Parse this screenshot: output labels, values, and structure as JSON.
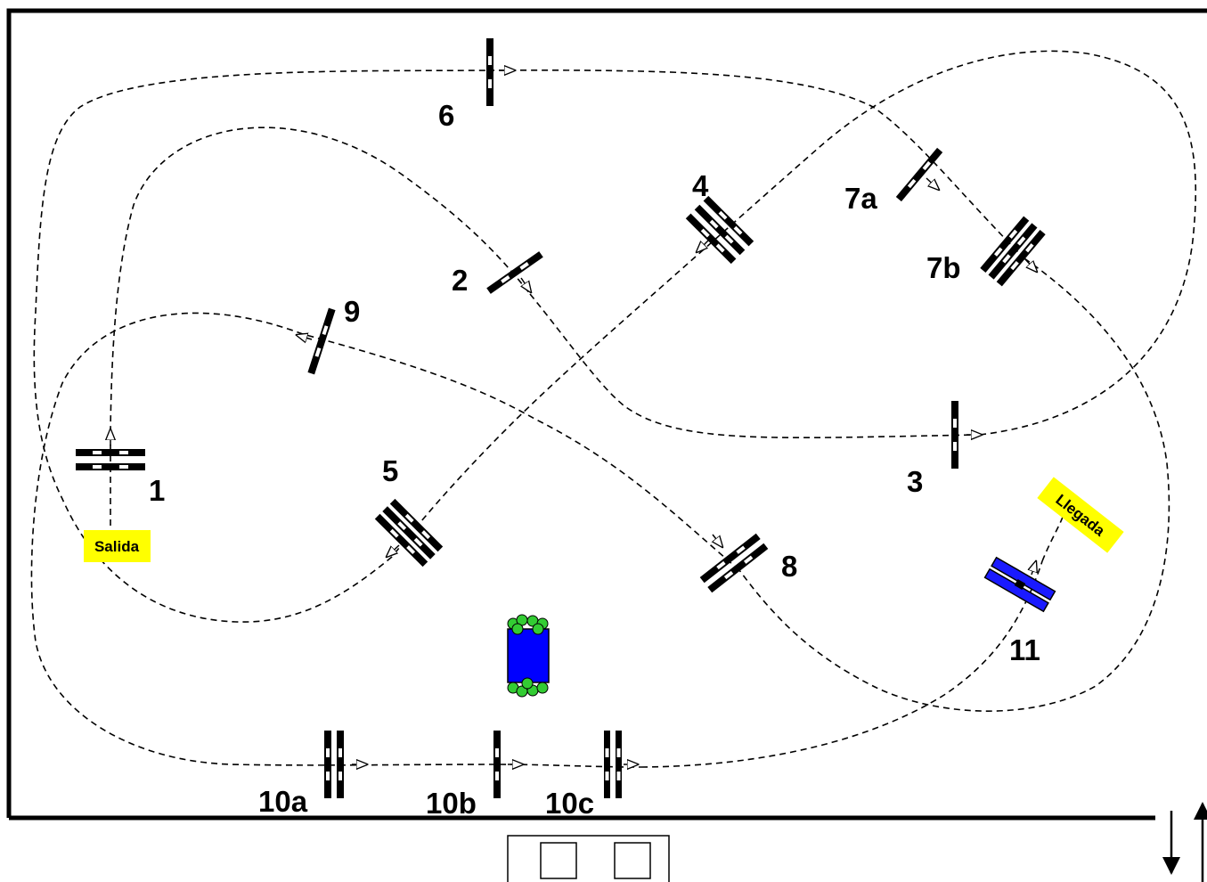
{
  "colors": {
    "border": "#000000",
    "sign": "#ffff00",
    "water_jump": "#0000ff",
    "water_jump_green": "#33cc33",
    "blue_jump": "#1a1aff"
  },
  "obstacles": {
    "o1": "1",
    "o2": "2",
    "o3": "3",
    "o4": "4",
    "o5": "5",
    "o6": "6",
    "o7a": "7a",
    "o7b": "7b",
    "o8": "8",
    "o9": "9",
    "o10a": "10a",
    "o10b": "10b",
    "o10c": "10c",
    "o11": "11"
  },
  "signs": {
    "start": "Salida",
    "finish": "Llegada"
  },
  "entrance": {
    "arrows": [
      "down-arrow-icon",
      "up-arrow-icon"
    ]
  }
}
